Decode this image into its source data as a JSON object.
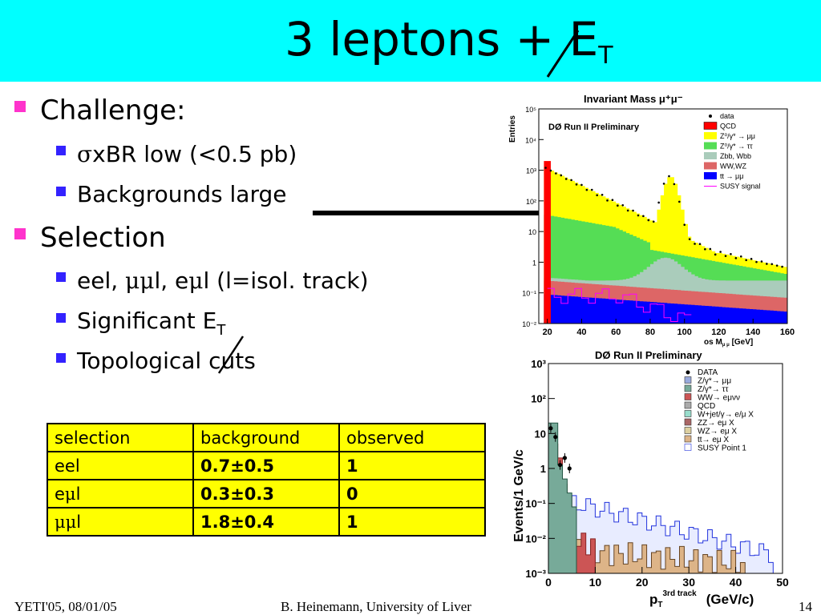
{
  "slide": {
    "title": "3 leptons + E",
    "title_sub": "T",
    "bullets": [
      {
        "text": "Challenge:",
        "sub": [
          {
            "greek": "σ",
            "text": "xBR low (<0.5 pb)"
          },
          {
            "text": "Backgrounds large"
          }
        ]
      },
      {
        "text": "Selection",
        "sub": [
          {
            "text_a": "eel, ",
            "greek_a": "μμ",
            "text_b": "l, e",
            "greek_b": "μ",
            "text_c": "l (l=isol. track)"
          },
          {
            "text": "Significant E",
            "text_sub": "T"
          },
          {
            "text": "Topological cuts"
          }
        ]
      }
    ]
  },
  "table": {
    "header": [
      "selection",
      "background",
      "observed"
    ],
    "rows": [
      {
        "sel_a": "eel",
        "sel_greek": "",
        "sel_b": "",
        "bg": "0.7±0.5",
        "obs": "1"
      },
      {
        "sel_a": "e",
        "sel_greek": "μ",
        "sel_b": "l",
        "bg": "0.3±0.3",
        "obs": "0"
      },
      {
        "sel_a": "",
        "sel_greek": "μμ",
        "sel_b": "l",
        "bg": "1.8±0.4",
        "obs": "1"
      }
    ]
  },
  "footer": {
    "left": "YETI'05, 08/01/05",
    "center": "B. Heinemann, University of Liver",
    "page": "14"
  },
  "plot1": {
    "title": "Invariant Mass μ⁺μ⁻",
    "label": "DØ Run II Preliminary",
    "ylabel": "Entries",
    "xlabel": "os M",
    "xlabel_sub": "μ μ",
    "xlabel_unit": "[GeV]",
    "xticks": [
      "20",
      "40",
      "60",
      "80",
      "100",
      "120",
      "140",
      "160"
    ],
    "yticks": [
      "10⁵",
      "10⁴",
      "10³",
      "10²",
      "10",
      "1",
      "10⁻¹",
      "10⁻²"
    ],
    "legend": [
      "data",
      "QCD",
      "Z⁰/γ* → μμ",
      "Z⁰/γ* → ττ",
      "Zbb, Wbb",
      "WW,WZ",
      "tt → μμ",
      "SUSY signal"
    ],
    "colors": {
      "qcd": "#ff0000",
      "zmumu": "#ffff00",
      "ztautau": "#55dd55",
      "zbb": "#aaccbb",
      "wwwz": "#dd6666",
      "tt": "#0000ff",
      "susy": "#ff00ff"
    }
  },
  "plot2": {
    "label": "DØ Run II Preliminary",
    "ylabel": "Events/1 GeV/c",
    "xlabel": "p",
    "xlabel_sub": "T",
    "xlabel_sup": "3rd track",
    "xlabel_unit": "(GeV/c)",
    "xticks": [
      "0",
      "10",
      "20",
      "30",
      "40",
      "50"
    ],
    "yticks": [
      "10³",
      "10²",
      "10",
      "1",
      "10⁻¹",
      "10⁻²",
      "10⁻³"
    ],
    "legend": [
      "DATA",
      "Z/γ*→ μμ",
      "Z/γ*→ ττ",
      "WW→ eμνν",
      "QCD",
      "W+jet/γ→ e/μ X",
      "ZZ→ eμ X",
      "WZ→ eμ X",
      "tt→ eμ X",
      "SUSY Point 1"
    ]
  }
}
